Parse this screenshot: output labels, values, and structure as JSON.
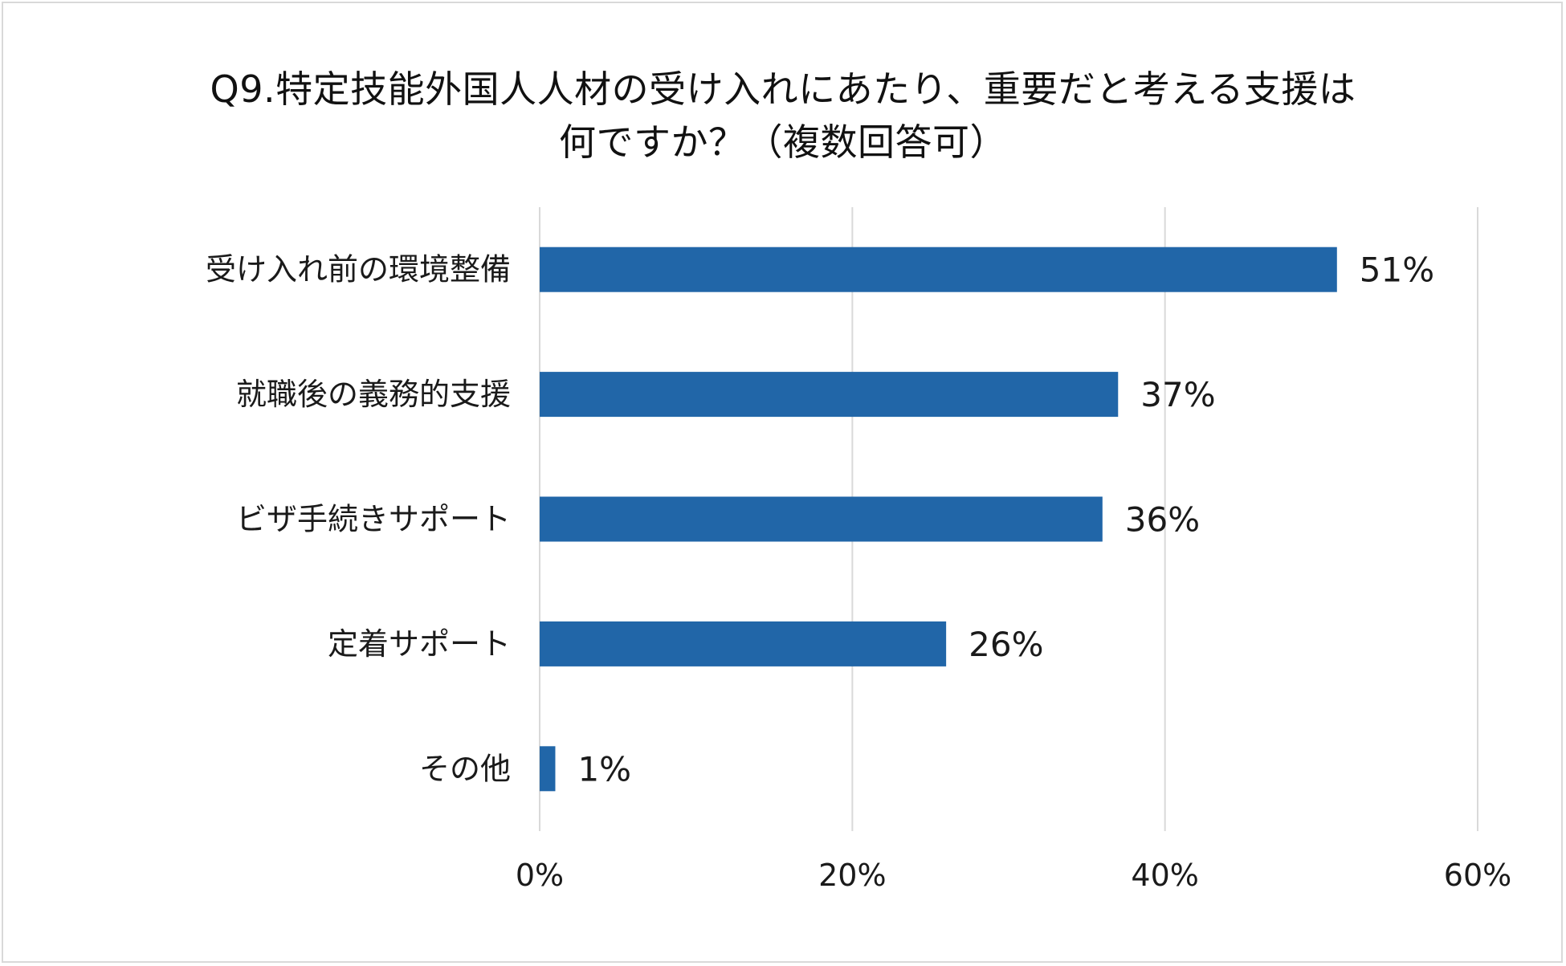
{
  "chart_data": {
    "type": "bar",
    "orientation": "horizontal",
    "title_line1": "Q9.特定技能外国人人材の受け入れにあたり、重要だと考える支援は",
    "title_line2": "何ですか？（複数回答可）",
    "categories": [
      "受け入れ前の環境整備",
      "就職後の義務的支援",
      "ビザ手続きサポート",
      "定着サポート",
      "その他"
    ],
    "values": [
      51,
      37,
      36,
      26,
      1
    ],
    "value_labels": [
      "51%",
      "37%",
      "36%",
      "26%",
      "1%"
    ],
    "xlim": [
      0,
      60
    ],
    "x_ticks": [
      0,
      20,
      40,
      60
    ],
    "x_tick_labels": [
      "0%",
      "20%",
      "40%",
      "60%"
    ],
    "grid": true,
    "bar_color": "#2166a8",
    "grid_color": "#d9d9d9"
  }
}
